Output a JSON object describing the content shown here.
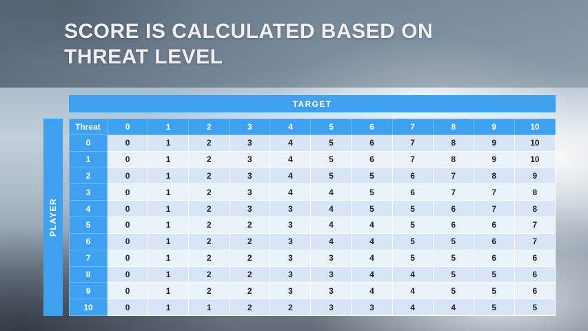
{
  "slide": {
    "title_line1": "SCORE IS CALCULATED BASED ON",
    "title_line2": "THREAT LEVEL"
  },
  "table": {
    "target_label": "TARGET",
    "player_label": "PLAYER",
    "corner_label": "Threat",
    "column_headers": [
      "0",
      "1",
      "2",
      "3",
      "4",
      "5",
      "6",
      "7",
      "8",
      "9",
      "10"
    ],
    "rows": [
      {
        "threat": "0",
        "values": [
          "0",
          "1",
          "2",
          "3",
          "4",
          "5",
          "6",
          "7",
          "8",
          "9",
          "10"
        ]
      },
      {
        "threat": "1",
        "values": [
          "0",
          "1",
          "2",
          "3",
          "4",
          "5",
          "6",
          "7",
          "8",
          "9",
          "10"
        ]
      },
      {
        "threat": "2",
        "values": [
          "0",
          "1",
          "2",
          "3",
          "4",
          "5",
          "5",
          "6",
          "7",
          "8",
          "9"
        ]
      },
      {
        "threat": "3",
        "values": [
          "0",
          "1",
          "2",
          "3",
          "4",
          "4",
          "5",
          "6",
          "7",
          "7",
          "8"
        ]
      },
      {
        "threat": "4",
        "values": [
          "0",
          "1",
          "2",
          "3",
          "3",
          "4",
          "5",
          "5",
          "6",
          "7",
          "8"
        ]
      },
      {
        "threat": "5",
        "values": [
          "0",
          "1",
          "2",
          "2",
          "3",
          "4",
          "4",
          "5",
          "6",
          "6",
          "7"
        ]
      },
      {
        "threat": "6",
        "values": [
          "0",
          "1",
          "2",
          "2",
          "3",
          "4",
          "4",
          "5",
          "5",
          "6",
          "7"
        ]
      },
      {
        "threat": "7",
        "values": [
          "0",
          "1",
          "2",
          "2",
          "3",
          "3",
          "4",
          "5",
          "5",
          "6",
          "6"
        ]
      },
      {
        "threat": "8",
        "values": [
          "0",
          "1",
          "2",
          "2",
          "3",
          "3",
          "4",
          "4",
          "5",
          "5",
          "6"
        ]
      },
      {
        "threat": "9",
        "values": [
          "0",
          "1",
          "2",
          "2",
          "3",
          "3",
          "4",
          "4",
          "5",
          "5",
          "6"
        ]
      },
      {
        "threat": "10",
        "values": [
          "0",
          "1",
          "1",
          "2",
          "2",
          "3",
          "3",
          "4",
          "4",
          "5",
          "5"
        ]
      }
    ]
  },
  "colors": {
    "accent_blue": "#3ea0f0",
    "row_band_dark": "#d7e5f7",
    "row_band_light": "#e9f1fb",
    "cell_text": "#222222",
    "title_text": "#f0f0f0"
  }
}
